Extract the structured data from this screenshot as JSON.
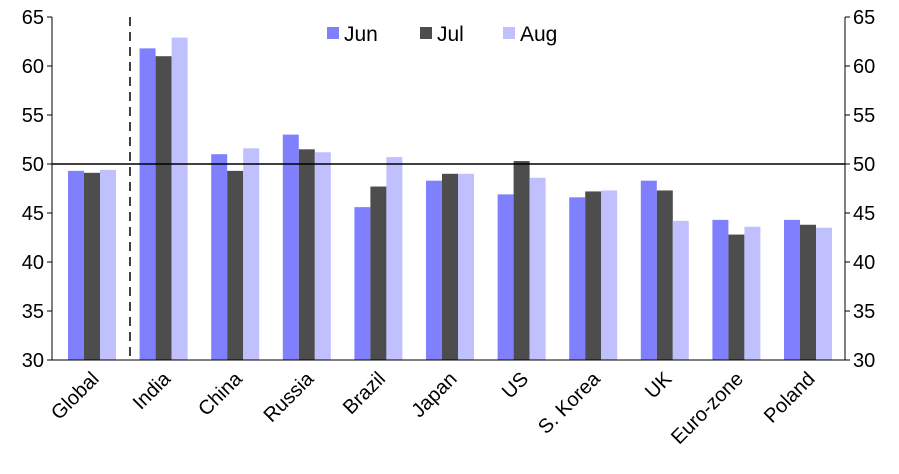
{
  "chart_data": {
    "type": "bar",
    "categories": [
      "Global",
      "India",
      "China",
      "Russia",
      "Brazil",
      "Japan",
      "US",
      "S. Korea",
      "UK",
      "Euro-zone",
      "Poland"
    ],
    "series": [
      {
        "name": "Jun",
        "color": "#8080ff",
        "values": [
          49.3,
          61.8,
          51.0,
          53.0,
          45.6,
          48.3,
          46.9,
          46.6,
          48.3,
          44.3,
          44.3
        ]
      },
      {
        "name": "Jul",
        "color": "#4d4d4d",
        "values": [
          49.1,
          61.0,
          49.3,
          51.5,
          47.7,
          49.0,
          50.3,
          47.2,
          47.3,
          42.8,
          43.8
        ]
      },
      {
        "name": "Aug",
        "color": "#c0c0ff",
        "values": [
          49.4,
          62.9,
          51.6,
          51.2,
          50.7,
          49.0,
          48.6,
          47.3,
          44.2,
          43.6,
          43.5
        ]
      }
    ],
    "ylim": [
      30,
      65
    ],
    "yticks": [
      30,
      35,
      40,
      45,
      50,
      55,
      60,
      65
    ],
    "reference_line": 50,
    "dashed_separator_after": "Global",
    "legend_placement": "top-center",
    "grid": false,
    "right_axis_mirrors_left": true
  }
}
